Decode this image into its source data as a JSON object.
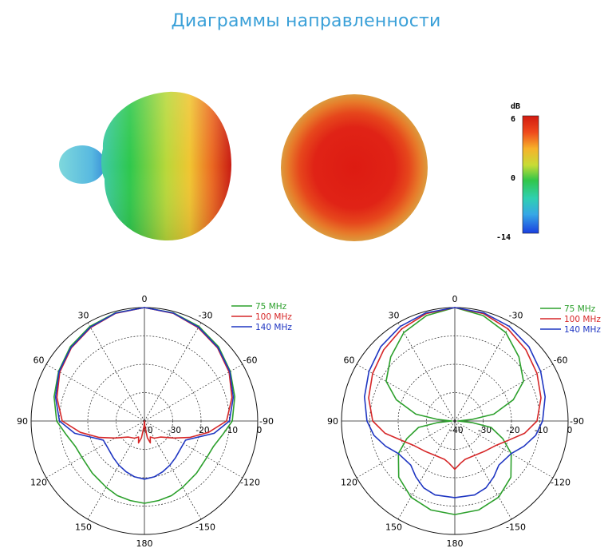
{
  "page": {
    "title": "Диаграммы направленности"
  },
  "colorbar": {
    "unit": "dB",
    "max": "6",
    "mid": "0",
    "min": "-14"
  },
  "chart_data": [
    {
      "type": "polar",
      "angle_labels": [
        "0",
        "-30",
        "-60",
        "-90",
        "-120",
        "-150",
        "180",
        "150",
        "120",
        "90",
        "60",
        "30"
      ],
      "radial_labels": [
        "0",
        "-10",
        "-20",
        "-30",
        "-40"
      ],
      "rmin_db": -40,
      "rmax_db": 0,
      "legend_position": "top-right",
      "series": [
        {
          "name": "75 MHz",
          "color": "#2ca02c",
          "values": [
            [
              0,
              0
            ],
            [
              15,
              -0.5
            ],
            [
              30,
              -1.5
            ],
            [
              45,
              -3
            ],
            [
              60,
              -5
            ],
            [
              75,
              -7
            ],
            [
              90,
              -9
            ],
            [
              100,
              -12
            ],
            [
              110,
              -14
            ],
            [
              120,
              -14.5
            ],
            [
              135,
              -14
            ],
            [
              150,
              -13
            ],
            [
              160,
              -12
            ],
            [
              170,
              -11.5
            ],
            [
              180,
              -11
            ],
            [
              190,
              -11.5
            ],
            [
              200,
              -12
            ],
            [
              210,
              -13
            ],
            [
              225,
              -14
            ],
            [
              240,
              -14.5
            ],
            [
              250,
              -14
            ],
            [
              260,
              -12
            ],
            [
              270,
              -9
            ],
            [
              285,
              -7
            ],
            [
              300,
              -5
            ],
            [
              315,
              -3
            ],
            [
              330,
              -1.5
            ],
            [
              345,
              -0.5
            ]
          ]
        },
        {
          "name": "100 MHz",
          "color": "#d62728",
          "values": [
            [
              0,
              0
            ],
            [
              15,
              -0.7
            ],
            [
              30,
              -2
            ],
            [
              45,
              -3.5
            ],
            [
              60,
              -5.5
            ],
            [
              75,
              -8
            ],
            [
              90,
              -11
            ],
            [
              100,
              -17
            ],
            [
              110,
              -23
            ],
            [
              120,
              -28
            ],
            [
              135,
              -32
            ],
            [
              150,
              -33
            ],
            [
              160,
              -34
            ],
            [
              165,
              -32
            ],
            [
              170,
              -34
            ],
            [
              175,
              -38
            ],
            [
              180,
              -40
            ],
            [
              185,
              -38
            ],
            [
              190,
              -34
            ],
            [
              195,
              -32
            ],
            [
              200,
              -34
            ],
            [
              210,
              -33
            ],
            [
              225,
              -32
            ],
            [
              240,
              -28
            ],
            [
              250,
              -23
            ],
            [
              260,
              -17
            ],
            [
              270,
              -11
            ],
            [
              285,
              -8
            ],
            [
              300,
              -5.5
            ],
            [
              315,
              -3.5
            ],
            [
              330,
              -2
            ],
            [
              345,
              -0.7
            ]
          ]
        },
        {
          "name": "140 MHz",
          "color": "#1f36c2",
          "values": [
            [
              0,
              0
            ],
            [
              15,
              -0.6
            ],
            [
              30,
              -1.8
            ],
            [
              45,
              -3.3
            ],
            [
              60,
              -5.2
            ],
            [
              75,
              -7.5
            ],
            [
              90,
              -10
            ],
            [
              100,
              -15
            ],
            [
              110,
              -22
            ],
            [
              115,
              -24
            ],
            [
              125,
              -24
            ],
            [
              140,
              -23
            ],
            [
              150,
              -22
            ],
            [
              160,
              -21
            ],
            [
              170,
              -20
            ],
            [
              180,
              -19.5
            ],
            [
              190,
              -20
            ],
            [
              200,
              -21
            ],
            [
              210,
              -22
            ],
            [
              220,
              -23
            ],
            [
              235,
              -24
            ],
            [
              245,
              -24
            ],
            [
              250,
              -22
            ],
            [
              260,
              -15
            ],
            [
              270,
              -10
            ],
            [
              285,
              -7.5
            ],
            [
              300,
              -5.2
            ],
            [
              315,
              -3.3
            ],
            [
              330,
              -1.8
            ],
            [
              345,
              -0.6
            ]
          ]
        }
      ]
    },
    {
      "type": "polar",
      "angle_labels": [
        "0",
        "-30",
        "-60",
        "-90",
        "-120",
        "-150",
        "180",
        "150",
        "120",
        "90",
        "60",
        "30"
      ],
      "radial_labels": [
        "0",
        "-10",
        "-20",
        "-30",
        "-40"
      ],
      "rmin_db": -40,
      "rmax_db": 0,
      "legend_position": "top-right",
      "series": [
        {
          "name": "75 MHz",
          "color": "#2ca02c",
          "values": [
            [
              0,
              0
            ],
            [
              15,
              -1.5
            ],
            [
              30,
              -4
            ],
            [
              45,
              -8
            ],
            [
              60,
              -12
            ],
            [
              70,
              -18
            ],
            [
              80,
              -26
            ],
            [
              85,
              -34
            ],
            [
              90,
              -39
            ],
            [
              95,
              -34
            ],
            [
              100,
              -27
            ],
            [
              110,
              -22
            ],
            [
              120,
              -17
            ],
            [
              135,
              -12
            ],
            [
              150,
              -9
            ],
            [
              165,
              -7.5
            ],
            [
              180,
              -7
            ],
            [
              195,
              -7.5
            ],
            [
              210,
              -9
            ],
            [
              225,
              -12
            ],
            [
              240,
              -17
            ],
            [
              250,
              -22
            ],
            [
              260,
              -27
            ],
            [
              265,
              -34
            ],
            [
              270,
              -39
            ],
            [
              275,
              -34
            ],
            [
              280,
              -26
            ],
            [
              290,
              -18
            ],
            [
              300,
              -12
            ],
            [
              315,
              -8
            ],
            [
              330,
              -4
            ],
            [
              345,
              -1.5
            ]
          ]
        },
        {
          "name": "100 MHz",
          "color": "#d62728",
          "values": [
            [
              0,
              0
            ],
            [
              15,
              -0.8
            ],
            [
              30,
              -2.5
            ],
            [
              45,
              -4.5
            ],
            [
              60,
              -6.5
            ],
            [
              75,
              -8.5
            ],
            [
              90,
              -11
            ],
            [
              100,
              -15
            ],
            [
              110,
              -20
            ],
            [
              120,
              -23
            ],
            [
              135,
              -25
            ],
            [
              150,
              -26
            ],
            [
              165,
              -26
            ],
            [
              172,
              -25
            ],
            [
              180,
              -23
            ],
            [
              188,
              -25
            ],
            [
              195,
              -26
            ],
            [
              210,
              -26
            ],
            [
              225,
              -25
            ],
            [
              240,
              -23
            ],
            [
              250,
              -20
            ],
            [
              260,
              -15
            ],
            [
              270,
              -11
            ],
            [
              285,
              -8.5
            ],
            [
              300,
              -6.5
            ],
            [
              315,
              -4.5
            ],
            [
              330,
              -2.5
            ],
            [
              345,
              -0.8
            ]
          ]
        },
        {
          "name": "140 MHz",
          "color": "#1f36c2",
          "values": [
            [
              0,
              0
            ],
            [
              15,
              -0.5
            ],
            [
              30,
              -1.5
            ],
            [
              45,
              -3
            ],
            [
              60,
              -5
            ],
            [
              75,
              -7
            ],
            [
              90,
              -9
            ],
            [
              100,
              -11
            ],
            [
              110,
              -14
            ],
            [
              120,
              -17
            ],
            [
              135,
              -18
            ],
            [
              145,
              -16
            ],
            [
              155,
              -14
            ],
            [
              165,
              -13
            ],
            [
              180,
              -13
            ],
            [
              195,
              -13
            ],
            [
              205,
              -14
            ],
            [
              215,
              -16
            ],
            [
              225,
              -18
            ],
            [
              240,
              -17
            ],
            [
              250,
              -14
            ],
            [
              260,
              -11
            ],
            [
              270,
              -9
            ],
            [
              285,
              -7
            ],
            [
              300,
              -5
            ],
            [
              315,
              -3
            ],
            [
              330,
              -1.5
            ],
            [
              345,
              -0.5
            ]
          ]
        }
      ]
    }
  ]
}
